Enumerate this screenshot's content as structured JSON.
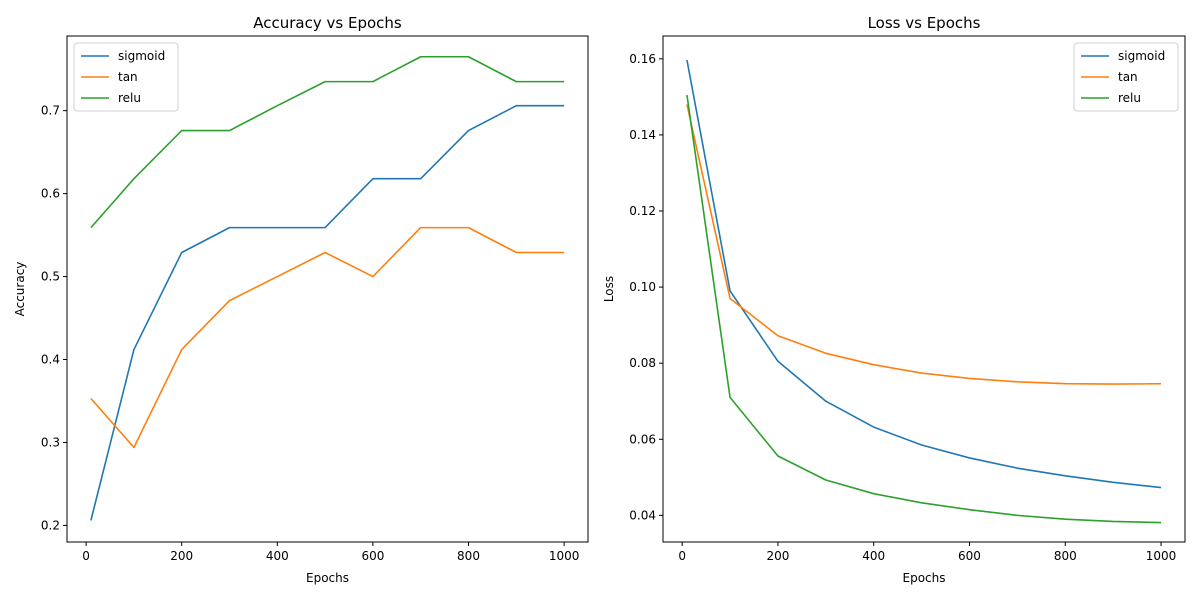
{
  "chart_data": [
    {
      "type": "line",
      "title": "Accuracy vs Epochs",
      "xlabel": "Epochs",
      "ylabel": "Accuracy",
      "x": [
        10,
        100,
        200,
        300,
        400,
        500,
        600,
        700,
        800,
        900,
        1000
      ],
      "xlim": [
        -40,
        1050
      ],
      "ylim": [
        0.18,
        0.79
      ],
      "xticks": [
        0,
        200,
        400,
        600,
        800,
        1000
      ],
      "yticks": [
        0.2,
        0.3,
        0.4,
        0.5,
        0.6,
        0.7
      ],
      "ytick_labels": [
        "0.2",
        "0.3",
        "0.4",
        "0.5",
        "0.6",
        "0.7"
      ],
      "legend_position": "top-left",
      "grid": false,
      "series": [
        {
          "name": "sigmoid",
          "color": "#1f77b4",
          "values": [
            0.206,
            0.412,
            0.529,
            0.559,
            0.559,
            0.559,
            0.618,
            0.618,
            0.676,
            0.706,
            0.706
          ]
        },
        {
          "name": "tan",
          "color": "#ff7f0e",
          "values": [
            0.353,
            0.294,
            0.412,
            0.471,
            0.5,
            0.529,
            0.5,
            0.559,
            0.559,
            0.529,
            0.529
          ]
        },
        {
          "name": "relu",
          "color": "#2ca02c",
          "values": [
            0.559,
            0.618,
            0.676,
            0.676,
            0.706,
            0.735,
            0.735,
            0.765,
            0.765,
            0.735,
            0.735
          ]
        }
      ]
    },
    {
      "type": "line",
      "title": "Loss vs Epochs",
      "xlabel": "Epochs",
      "ylabel": "Loss",
      "x": [
        10,
        100,
        200,
        300,
        400,
        500,
        600,
        700,
        800,
        900,
        1000
      ],
      "xlim": [
        -40,
        1050
      ],
      "ylim": [
        0.033,
        0.166
      ],
      "xticks": [
        0,
        200,
        400,
        600,
        800,
        1000
      ],
      "yticks": [
        0.04,
        0.06,
        0.08,
        0.1,
        0.12,
        0.14,
        0.16
      ],
      "ytick_labels": [
        "0.04",
        "0.06",
        "0.08",
        "0.10",
        "0.12",
        "0.14",
        "0.16"
      ],
      "legend_position": "top-right",
      "grid": false,
      "series": [
        {
          "name": "sigmoid",
          "color": "#1f77b4",
          "values": [
            0.1597,
            0.099,
            0.0805,
            0.07,
            0.0632,
            0.0585,
            0.0551,
            0.0524,
            0.0504,
            0.0487,
            0.0473
          ]
        },
        {
          "name": "tan",
          "color": "#ff7f0e",
          "values": [
            0.148,
            0.097,
            0.0872,
            0.0826,
            0.0796,
            0.0774,
            0.076,
            0.0751,
            0.0746,
            0.0745,
            0.0746
          ]
        },
        {
          "name": "relu",
          "color": "#2ca02c",
          "values": [
            0.1505,
            0.071,
            0.0556,
            0.0493,
            0.0457,
            0.0433,
            0.0415,
            0.04,
            0.039,
            0.0384,
            0.0381
          ]
        }
      ]
    }
  ]
}
